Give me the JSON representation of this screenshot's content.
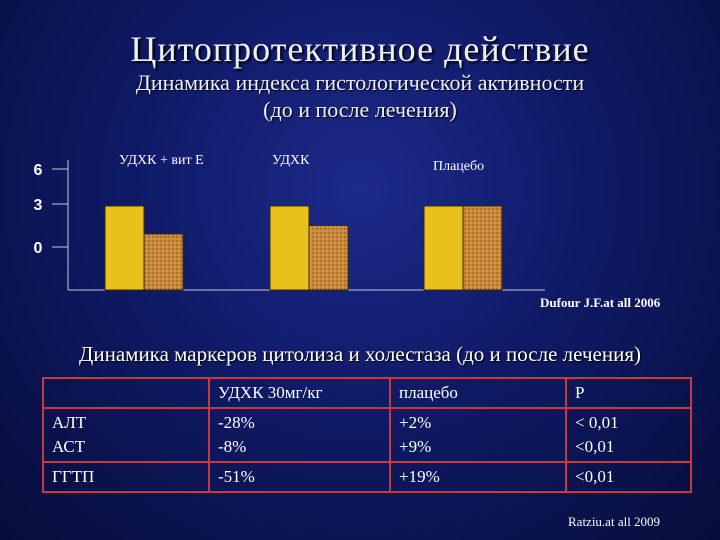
{
  "title": "Цитопротективное действие",
  "subtitle_line1": "Динамика индекса гистологической активности",
  "subtitle_line2": "(до и после лечения)",
  "chart_data": {
    "type": "bar",
    "yticks": [
      "6",
      "3",
      "0"
    ],
    "ylim": [
      0,
      6
    ],
    "categories": [
      "УДХК + вит Е",
      "УДХК",
      "Плацебо"
    ],
    "series": [
      {
        "values": [
          3,
          3,
          3
        ],
        "color": "#e8c21a"
      },
      {
        "values": [
          2,
          2.3,
          3
        ],
        "color": "#c98a3a"
      }
    ],
    "source": "Dufour J.F.at all 2006"
  },
  "section2_title": "Динамика маркеров цитолиза и холестаза (до и после лечения)",
  "table": {
    "rows": [
      [
        "",
        "УДХК 30мг/кг",
        "плацебо",
        "P"
      ],
      [
        "АЛТ",
        "-28%",
        "+2%",
        "< 0,01"
      ],
      [
        "АСТ",
        "-8%",
        "+9%",
        "<0,01"
      ],
      [
        "ГГТП",
        "-51%",
        "+19%",
        "<0,01"
      ]
    ],
    "source": "Ratziu.at all 2009"
  }
}
